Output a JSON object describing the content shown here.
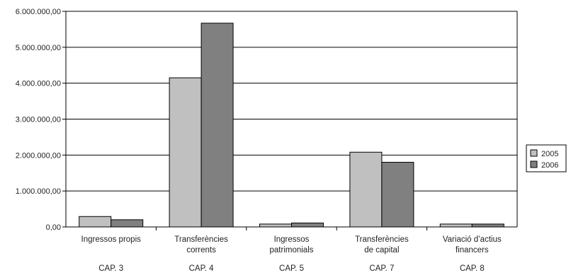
{
  "chart_data": {
    "type": "bar",
    "title": "",
    "xlabel": "",
    "ylabel": "",
    "categories": [
      [
        "Ingressos propis"
      ],
      [
        "Transferències",
        "corrents"
      ],
      [
        "Ingressos",
        "patrimonials"
      ],
      [
        "Transferències",
        "de capital"
      ],
      [
        "Variació d’actius",
        "financers"
      ]
    ],
    "chapters": [
      "CAP. 3",
      "CAP. 4",
      "CAP. 5",
      "CAP. 7",
      "CAP. 8"
    ],
    "series": [
      {
        "name": "2005",
        "color": "#c0c0c0",
        "values": [
          290000,
          4150000,
          80000,
          2080000,
          80000
        ]
      },
      {
        "name": "2006",
        "color": "#808080",
        "values": [
          200000,
          5670000,
          110000,
          1800000,
          80000
        ]
      }
    ],
    "y_ticks": [
      "0,00",
      "1.000.000,00",
      "2.000.000,00",
      "3.000.000,00",
      "4.000.000,00",
      "5.000.000,00",
      "6.000.000,00"
    ],
    "ylim": [
      0,
      6000000
    ],
    "grid": true,
    "legend_position": "right"
  }
}
